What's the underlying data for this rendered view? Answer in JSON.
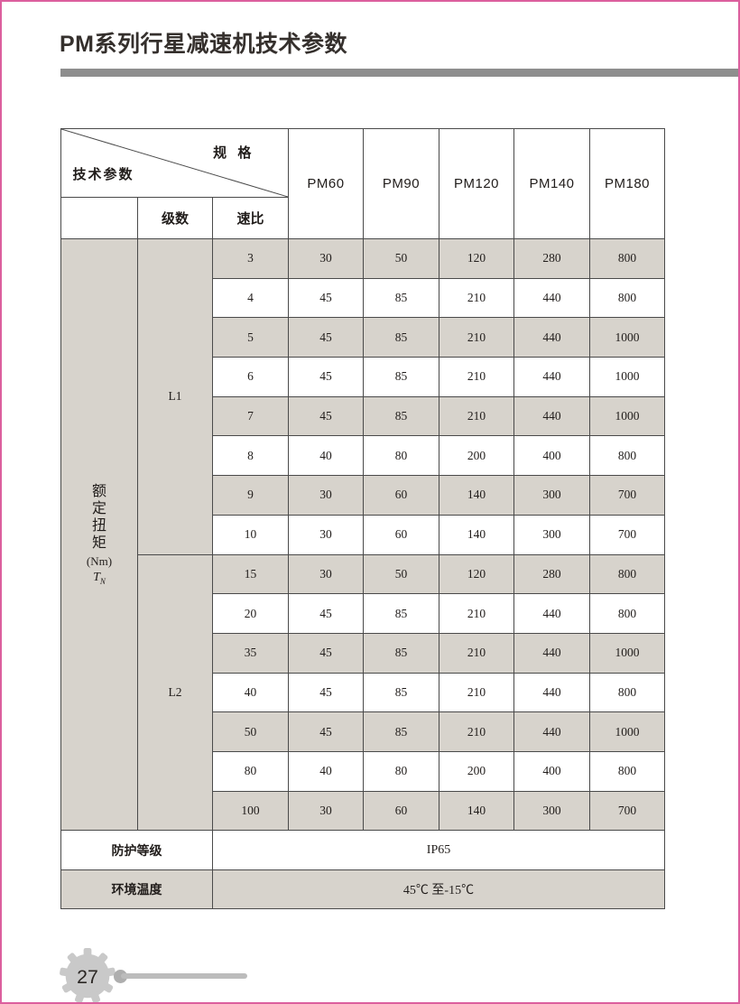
{
  "page": {
    "title": "PM系列行星减速机技术参数",
    "page_number": "27"
  },
  "colors": {
    "page_border_pink": "#dc5f9e",
    "title_bar_gray": "#8e8e8e",
    "table_border": "#4a4a4a",
    "shaded_cell": "#d7d3cc",
    "gear_gray": "#c9c9c9",
    "text": "#211d1b"
  },
  "table": {
    "corner": {
      "top_label": "规 格",
      "bottom_label": "技术参数"
    },
    "spec_headers": [
      "PM60",
      "PM90",
      "PM120",
      "PM140",
      "PM180"
    ],
    "sub_headers": {
      "stage": "级数",
      "ratio": "速比"
    },
    "torque_label": {
      "chars": "额定扭矩",
      "unit": "(Nm)",
      "symbol": "T",
      "symbol_sub": "N"
    },
    "groups": [
      {
        "stage": "L1",
        "rows": [
          {
            "ratio": "3",
            "values": [
              "30",
              "50",
              "120",
              "280",
              "800"
            ]
          },
          {
            "ratio": "4",
            "values": [
              "45",
              "85",
              "210",
              "440",
              "800"
            ]
          },
          {
            "ratio": "5",
            "values": [
              "45",
              "85",
              "210",
              "440",
              "1000"
            ]
          },
          {
            "ratio": "6",
            "values": [
              "45",
              "85",
              "210",
              "440",
              "1000"
            ]
          },
          {
            "ratio": "7",
            "values": [
              "45",
              "85",
              "210",
              "440",
              "1000"
            ]
          },
          {
            "ratio": "8",
            "values": [
              "40",
              "80",
              "200",
              "400",
              "800"
            ]
          },
          {
            "ratio": "9",
            "values": [
              "30",
              "60",
              "140",
              "300",
              "700"
            ]
          },
          {
            "ratio": "10",
            "values": [
              "30",
              "60",
              "140",
              "300",
              "700"
            ]
          }
        ]
      },
      {
        "stage": "L2",
        "rows": [
          {
            "ratio": "15",
            "values": [
              "30",
              "50",
              "120",
              "280",
              "800"
            ]
          },
          {
            "ratio": "20",
            "values": [
              "45",
              "85",
              "210",
              "440",
              "800"
            ]
          },
          {
            "ratio": "35",
            "values": [
              "45",
              "85",
              "210",
              "440",
              "1000"
            ]
          },
          {
            "ratio": "40",
            "values": [
              "45",
              "85",
              "210",
              "440",
              "800"
            ]
          },
          {
            "ratio": "50",
            "values": [
              "45",
              "85",
              "210",
              "440",
              "1000"
            ]
          },
          {
            "ratio": "80",
            "values": [
              "40",
              "80",
              "200",
              "400",
              "800"
            ]
          },
          {
            "ratio": "100",
            "values": [
              "30",
              "60",
              "140",
              "300",
              "700"
            ]
          }
        ]
      }
    ],
    "footer_rows": [
      {
        "label": "防护等级",
        "value": "IP65",
        "shaded": false
      },
      {
        "label": "环境温度",
        "value": "45℃ 至-15℃",
        "shaded": true
      }
    ]
  }
}
